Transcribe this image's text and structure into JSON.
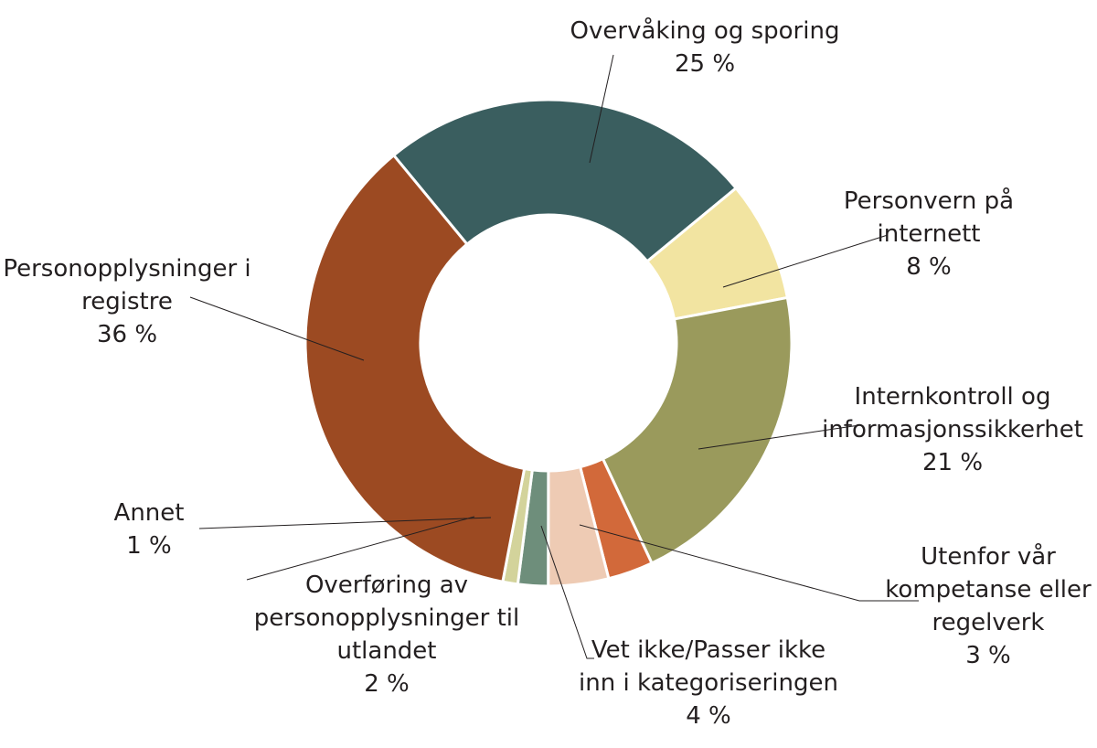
{
  "chart_data": {
    "type": "pie",
    "donut": true,
    "categories": [
      "Overvåking og sporing",
      "Personvern på internett",
      "Internkontroll og informasjonssikkerhet",
      "Utenfor vår kompetanse eller regelverk",
      "Vet ikke/Passer ikke inn i kategoriseringen",
      "Overføring av personopplysninger til utlandet",
      "Annet",
      "Personopplysninger i registre"
    ],
    "values": [
      25,
      8,
      21,
      3,
      4,
      2,
      1,
      36
    ],
    "value_labels": [
      "25 %",
      "8 %",
      "21 %",
      "3 %",
      "4 %",
      "2 %",
      "1 %",
      "36 %"
    ],
    "label_lines": [
      [
        "Overvåking og sporing"
      ],
      [
        "Personvern på",
        "internett"
      ],
      [
        "Internkontroll og",
        "informasjonssikkerhet"
      ],
      [
        "Utenfor vår",
        "kompetanse eller",
        "regelverk"
      ],
      [
        "Vet ikke/Passer ikke",
        "inn i kategoriseringen"
      ],
      [
        "Overføring av",
        "personopplysninger til",
        "utlandet"
      ],
      [
        "Annet"
      ],
      [
        "Personopplysninger i",
        "registre"
      ]
    ],
    "colors": [
      "#3a5e5f",
      "#f2e4a1",
      "#9a9a5c",
      "#d2693a",
      "#eecbb4",
      "#6e8e7b",
      "#d3d39b",
      "#9c4a22"
    ],
    "title": "",
    "legend": "none"
  }
}
